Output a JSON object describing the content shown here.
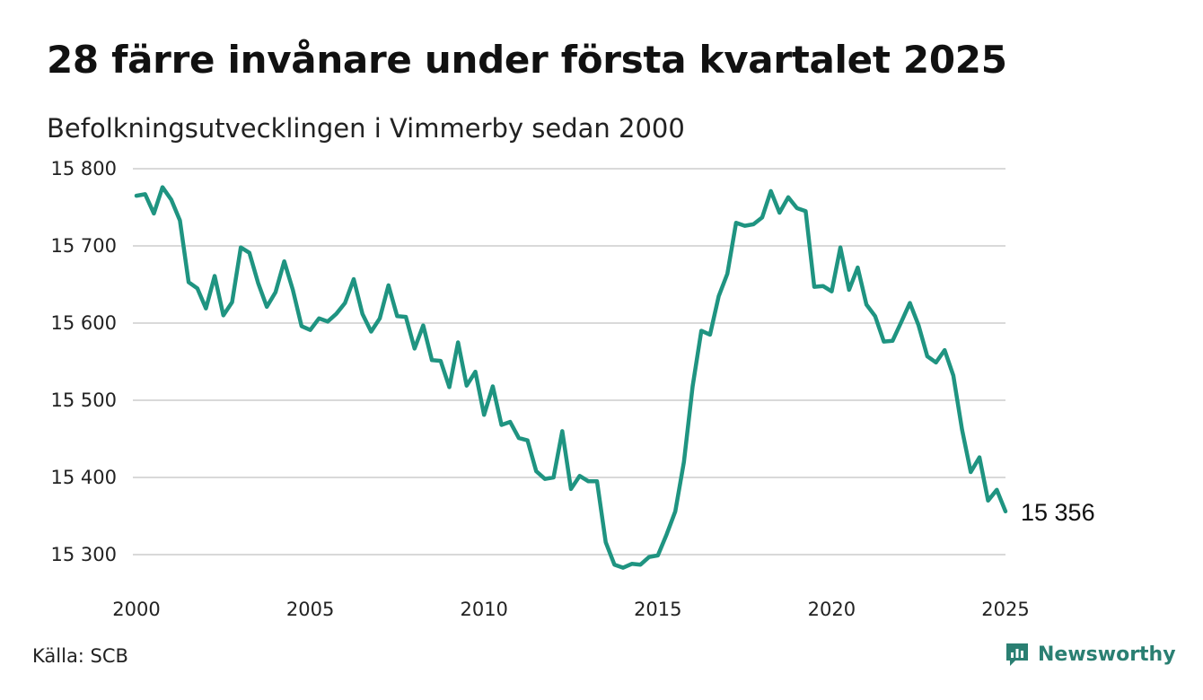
{
  "header": {
    "title": "28 färre invånare under första kvartalet 2025",
    "subtitle": "Befolkningsutvecklingen i Vimmerby sedan 2000"
  },
  "footer": {
    "source": "Källa: SCB",
    "brand": "Newsworthy",
    "brand_icon": "newsworthy-logo-icon"
  },
  "colors": {
    "line": "#1f9481",
    "grid": "#d9d9d9",
    "brand": "#2a7f72"
  },
  "chart_data": {
    "type": "line",
    "title": "28 färre invånare under första kvartalet 2025",
    "subtitle": "Befolkningsutvecklingen i Vimmerby sedan 2000",
    "xlabel": "",
    "ylabel": "",
    "xlim": [
      2000,
      2025
    ],
    "ylim": [
      15280,
      15800
    ],
    "x_ticks": [
      2000,
      2005,
      2010,
      2015,
      2020,
      2025
    ],
    "y_ticks": [
      15300,
      15400,
      15500,
      15600,
      15700,
      15800
    ],
    "x_tick_labels": [
      "2000",
      "2005",
      "2010",
      "2015",
      "2020",
      "2025"
    ],
    "y_tick_labels": [
      "15 300",
      "15 400",
      "15 500",
      "15 600",
      "15 700",
      "15 800"
    ],
    "grid": "horizontal",
    "legend": "none",
    "end_label": "15 356",
    "series": [
      {
        "x": [
          2000.0,
          2000.25,
          2000.5,
          2000.75,
          2001.0,
          2001.25,
          2001.5,
          2001.75,
          2002.0,
          2002.25,
          2002.5,
          2002.75,
          2003.0,
          2003.25,
          2003.5,
          2003.75,
          2004.0,
          2004.25,
          2004.5,
          2004.75,
          2005.0,
          2005.25,
          2005.5,
          2005.75,
          2006.0,
          2006.25,
          2006.5,
          2006.75,
          2007.0,
          2007.25,
          2007.5,
          2007.75,
          2008.0,
          2008.25,
          2008.5,
          2008.75,
          2009.0,
          2009.25,
          2009.5,
          2009.75,
          2010.0,
          2010.25,
          2010.5,
          2010.75,
          2011.0,
          2011.25,
          2011.5,
          2011.75,
          2012.0,
          2012.25,
          2012.5,
          2012.75,
          2013.0,
          2013.25,
          2013.5,
          2013.75,
          2014.0,
          2014.25,
          2014.5,
          2014.75,
          2015.0,
          2015.25,
          2015.5,
          2015.75,
          2016.0,
          2016.25,
          2016.5,
          2016.75,
          2017.0,
          2017.25,
          2017.5,
          2017.75,
          2018.0,
          2018.25,
          2018.5,
          2018.75,
          2019.0,
          2019.25,
          2019.5,
          2019.75,
          2020.0,
          2020.25,
          2020.5,
          2020.75,
          2021.0,
          2021.25,
          2021.5,
          2021.75,
          2022.0,
          2022.25,
          2022.5,
          2022.75,
          2023.0,
          2023.25,
          2023.5,
          2023.75,
          2024.0,
          2024.25,
          2024.5,
          2024.75,
          2025.0
        ],
        "y": [
          15765,
          15767,
          15742,
          15776,
          15760,
          15733,
          15653,
          15645,
          15619,
          15661,
          15610,
          15627,
          15698,
          15691,
          15652,
          15621,
          15640,
          15680,
          15643,
          15596,
          15591,
          15606,
          15602,
          15612,
          15626,
          15657,
          15612,
          15589,
          15606,
          15649,
          15609,
          15608,
          15567,
          15597,
          15552,
          15551,
          15517,
          15575,
          15519,
          15537,
          15481,
          15518,
          15468,
          15472,
          15451,
          15448,
          15408,
          15398,
          15400,
          15460,
          15385,
          15402,
          15395,
          15395,
          15316,
          15287,
          15283,
          15288,
          15287,
          15297,
          15299,
          15326,
          15356,
          15420,
          15518,
          15590,
          15585,
          15635,
          15664,
          15730,
          15726,
          15728,
          15737,
          15771,
          15743,
          15763,
          15749,
          15745,
          15647,
          15648,
          15641,
          15698,
          15643,
          15672,
          15624,
          15609,
          15576,
          15577,
          15601,
          15626,
          15597,
          15557,
          15549,
          15565,
          15532,
          15462,
          15407,
          15426,
          15370,
          15384,
          15356
        ]
      }
    ]
  }
}
